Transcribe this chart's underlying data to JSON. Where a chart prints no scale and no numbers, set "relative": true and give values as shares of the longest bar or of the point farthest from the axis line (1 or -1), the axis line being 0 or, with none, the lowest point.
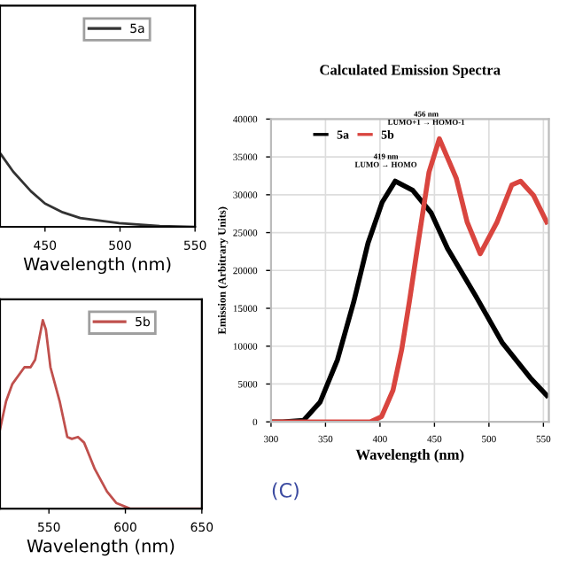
{
  "chart_data": [
    {
      "type": "line",
      "xlabel": "Wavelength (nm)",
      "relative": true,
      "xlim": [
        420,
        550
      ],
      "xticks": [
        450,
        500,
        550
      ],
      "tick_labels": "x",
      "legend": "top right",
      "grid": false,
      "series": [
        {
          "name": "5a",
          "color": "#333333",
          "x": [
            420.6,
            428.8,
            440.6,
            450,
            461.8,
            473.5,
            499.4,
            526.5,
            550
          ],
          "values": [
            1,
            0.76,
            0.49,
            0.32,
            0.2,
            0.12,
            0.05,
            0.01,
            0
          ]
        }
      ]
    },
    {
      "type": "line",
      "xlabel": "Wavelength (nm)",
      "relative": true,
      "xlim": [
        518,
        650
      ],
      "xticks": [
        550,
        600,
        650
      ],
      "tick_labels": "x",
      "legend": "top right",
      "grid": false,
      "series": [
        {
          "name": "5b",
          "color": "#c0504d",
          "x": [
            518,
            522,
            526,
            534,
            538,
            541,
            546,
            548,
            551,
            557,
            562,
            565,
            569,
            573,
            580,
            588,
            594,
            603,
            650
          ],
          "values": [
            0.42,
            0.57,
            0.66,
            0.75,
            0.75,
            0.79,
            1.0,
            0.95,
            0.75,
            0.57,
            0.38,
            0.37,
            0.38,
            0.35,
            0.21,
            0.09,
            0.03,
            0,
            0
          ]
        }
      ]
    },
    {
      "type": "line",
      "title": "Calculated Emission Spectra",
      "xlabel": "Wavelength (nm)",
      "ylabel": "Emission (Arbitrary Units)",
      "xlim": [
        300,
        555
      ],
      "xticks": [
        300,
        350,
        400,
        450,
        500,
        550
      ],
      "ylim": [
        0,
        40000
      ],
      "yticks": [
        0,
        5000,
        10000,
        15000,
        20000,
        25000,
        30000,
        35000,
        40000
      ],
      "grid": true,
      "legend": "top",
      "annotations": [
        {
          "text": "419 nm\nLUMO → HOMO",
          "x": 419,
          "y": 31800
        },
        {
          "text": "456 nm\nLUMO+1 → HOMO-1",
          "x": 456,
          "y": 37400
        },
        "(C)"
      ],
      "series": [
        {
          "name": "5a",
          "color": "#000000",
          "x": [
            300,
            310.6,
            330,
            345,
            361,
            376,
            389,
            402,
            414,
            430,
            447,
            462,
            488,
            512,
            538,
            553
          ],
          "values": [
            0,
            0,
            200,
            2600,
            8200,
            15900,
            23600,
            29000,
            31800,
            30600,
            27600,
            22900,
            16600,
            10500,
            5800,
            3500
          ]
        },
        {
          "name": "5b",
          "color": "#d9453f",
          "x": [
            300,
            391,
            401.5,
            412,
            420,
            427,
            435,
            445,
            454.5,
            470,
            480,
            492,
            507.5,
            521,
            529,
            541,
            553
          ],
          "values": [
            0,
            0,
            700,
            4200,
            9600,
            15900,
            23600,
            33000,
            37400,
            32200,
            26400,
            22200,
            26400,
            31300,
            31800,
            29900,
            26400
          ]
        }
      ]
    }
  ]
}
